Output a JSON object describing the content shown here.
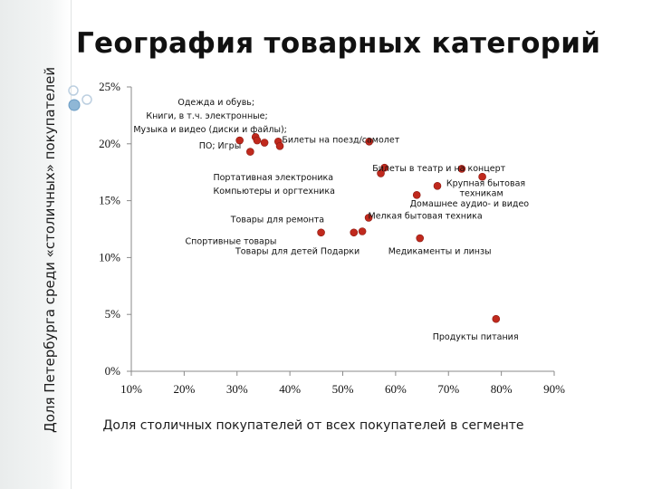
{
  "slide_title": "География товарных категорий",
  "chart_data": {
    "type": "scatter",
    "title": "География товарных категорий",
    "xlabel": "Доля столичных покупателей от всех покупателей в сегменте",
    "ylabel": "Доля Петербурга среди «столичных» покупателей",
    "xlim": [
      0.1,
      0.9
    ],
    "ylim": [
      0.0,
      0.25
    ],
    "x_ticks": [
      "10%",
      "20%",
      "30%",
      "40%",
      "50%",
      "60%",
      "70%",
      "80%",
      "90%"
    ],
    "y_ticks": [
      "0%",
      "5%",
      "10%",
      "15%",
      "20%",
      "25%"
    ],
    "grid": false,
    "point_color": "#c0291d",
    "points": [
      {
        "x": 0.305,
        "y": 0.203
      },
      {
        "x": 0.325,
        "y": 0.193
      },
      {
        "x": 0.335,
        "y": 0.206
      },
      {
        "x": 0.338,
        "y": 0.203
      },
      {
        "x": 0.352,
        "y": 0.201
      },
      {
        "x": 0.378,
        "y": 0.202
      },
      {
        "x": 0.381,
        "y": 0.198
      },
      {
        "x": 0.459,
        "y": 0.122
      },
      {
        "x": 0.521,
        "y": 0.122
      },
      {
        "x": 0.537,
        "y": 0.123
      },
      {
        "x": 0.549,
        "y": 0.135
      },
      {
        "x": 0.55,
        "y": 0.202
      },
      {
        "x": 0.572,
        "y": 0.174
      },
      {
        "x": 0.579,
        "y": 0.179
      },
      {
        "x": 0.64,
        "y": 0.155
      },
      {
        "x": 0.646,
        "y": 0.117
      },
      {
        "x": 0.679,
        "y": 0.163
      },
      {
        "x": 0.725,
        "y": 0.178
      },
      {
        "x": 0.764,
        "y": 0.171
      },
      {
        "x": 0.79,
        "y": 0.046
      }
    ],
    "annotations": [
      {
        "text": "Одежда и обувь;",
        "x": 0.188,
        "y": 0.234
      },
      {
        "text": "Книги, в т.ч. электронные;",
        "x": 0.128,
        "y": 0.222
      },
      {
        "text": "Музыка и видео (диски и файлы);",
        "x": 0.104,
        "y": 0.21
      },
      {
        "text": "ПО; Игры",
        "x": 0.228,
        "y": 0.196
      },
      {
        "text": "Билеты на поезд/самолет",
        "x": 0.385,
        "y": 0.201
      },
      {
        "text": "Билеты в театр и на концерт",
        "x": 0.556,
        "y": 0.176
      },
      {
        "text": "Портативная электроника",
        "x": 0.255,
        "y": 0.168
      },
      {
        "text": "Крупная бытовая",
        "x": 0.696,
        "y": 0.163
      },
      {
        "text": "Компьютеры и оргтехника",
        "x": 0.255,
        "y": 0.156
      },
      {
        "text": "техникам",
        "x": 0.721,
        "y": 0.154
      },
      {
        "text": "Домашнее аудио- и видео",
        "x": 0.627,
        "y": 0.145
      },
      {
        "text": "Мелкая бытовая техника",
        "x": 0.548,
        "y": 0.134
      },
      {
        "text": "Товары для ремонта",
        "x": 0.288,
        "y": 0.131
      },
      {
        "text": "Спортивные товары",
        "x": 0.202,
        "y": 0.112
      },
      {
        "text": "Товары для детей Подарки",
        "x": 0.297,
        "y": 0.103
      },
      {
        "text": "Медикаменты и линзы",
        "x": 0.586,
        "y": 0.103
      },
      {
        "text": "Продукты питания",
        "x": 0.67,
        "y": 0.028
      }
    ]
  }
}
